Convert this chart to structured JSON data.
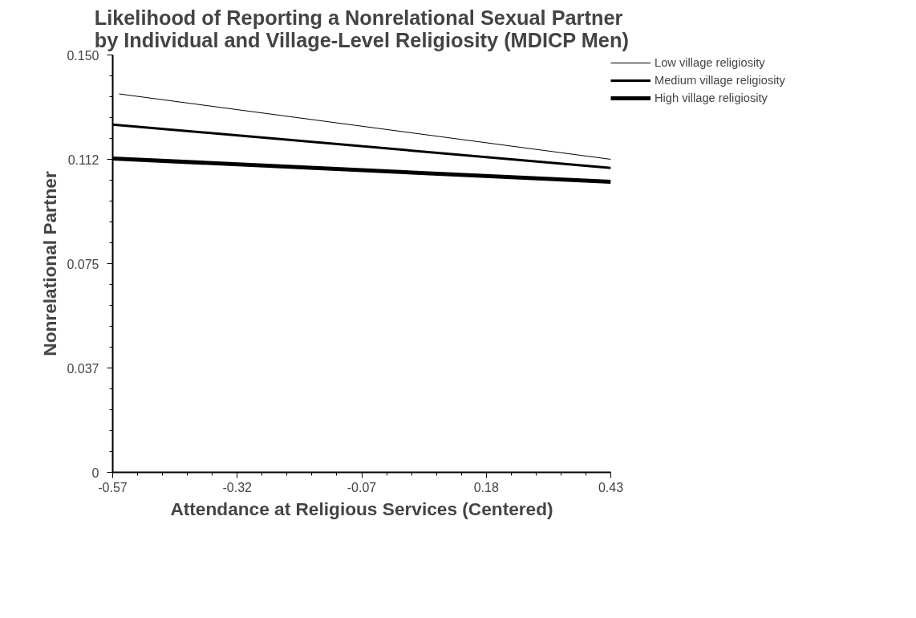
{
  "chart_data": {
    "type": "line",
    "title": "Likelihood of Reporting a Nonrelational Sexual Partner\nby Individual and Village-Level Religiosity (MDICP Men)",
    "xlabel": "Attendance at Religious Services (Centered)",
    "ylabel": "Nonrelational Partner",
    "xlim": [
      -0.57,
      0.43
    ],
    "xticks": [
      -0.57,
      -0.32,
      -0.07,
      0.18,
      0.43
    ],
    "ylim": [
      0,
      0.15
    ],
    "yticks": [
      0,
      {
        "value": 0.0375,
        "label": "0.037"
      },
      {
        "value": 0.075,
        "label": "0.075"
      },
      {
        "value": 0.1125,
        "label": "0.112"
      },
      {
        "value": 0.15,
        "label": "0.150"
      }
    ],
    "grid": false,
    "legend": "top right",
    "marker": "none",
    "line_style": "solid",
    "series": [
      {
        "name": "Low village religiosity",
        "color": "#000000",
        "x": [
          -0.557,
          0.43
        ],
        "values": [
          0.136,
          0.1125
        ]
      },
      {
        "name": "Medium village religiosity",
        "color": "#000000",
        "x": [
          -0.57,
          0.43
        ],
        "values": [
          0.125,
          0.1094
        ]
      },
      {
        "name": "High village religiosity",
        "color": "#000000",
        "x": [
          -0.57,
          0.43
        ],
        "values": [
          0.1128,
          0.1044
        ]
      }
    ]
  }
}
